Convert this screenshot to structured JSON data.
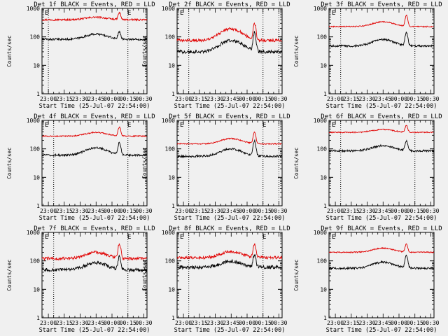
{
  "figure": {
    "start_label": "Start Time (25-Jul-07 22:54:00)",
    "ylabel": "Counts/sec",
    "marker_label": "E",
    "colors": {
      "events": "#000000",
      "lld": "#e00000",
      "axes": "#000000",
      "background": "#f0f0f0"
    }
  },
  "chart_data": [
    {
      "type": "line",
      "title": "Det 1f BLACK = Events, RED = LLD",
      "xlabel": "Start Time (25-Jul-07 22:54:00)",
      "ylabel": "Counts/sec",
      "yscale": "log",
      "ylim": [
        1,
        1000
      ],
      "yticks": [
        "1",
        "10",
        "100",
        "1000"
      ],
      "xlim": [
        "22:54",
        "00:33"
      ],
      "xticks": [
        "23:00",
        "23:15",
        "23:30",
        "23:45",
        "00:00",
        "00:15",
        "00:30"
      ],
      "marker_lines": [
        "23:00",
        "00:15"
      ],
      "markers": [
        "E",
        "E"
      ],
      "series": [
        {
          "name": "LLD",
          "color": "#e00000",
          "base": 400,
          "hump": 490,
          "peak": 700,
          "noise": 0.03
        },
        {
          "name": "Events",
          "color": "#000000",
          "base": 82,
          "hump": 125,
          "peak": 150,
          "noise": 0.035
        }
      ]
    },
    {
      "type": "line",
      "title": "Det 2f BLACK = Events, RED = LLD",
      "xlabel": "Start Time (25-Jul-07 22:54:00)",
      "ylabel": "Counts/sec",
      "yscale": "log",
      "ylim": [
        1,
        1000
      ],
      "yticks": [
        "1",
        "10",
        "100",
        "1000"
      ],
      "xlim": [
        "22:54",
        "00:33"
      ],
      "xticks": [
        "23:00",
        "23:15",
        "23:30",
        "23:45",
        "00:00",
        "00:15",
        "00:30"
      ],
      "marker_lines": [
        "23:05",
        "00:15",
        "00:30"
      ],
      "markers": [
        "E"
      ],
      "series": [
        {
          "name": "LLD",
          "color": "#e00000",
          "base": 75,
          "hump": 190,
          "peak": 300,
          "noise": 0.05
        },
        {
          "name": "Events",
          "color": "#000000",
          "base": 30,
          "hump": 75,
          "peak": 140,
          "noise": 0.06
        }
      ]
    },
    {
      "type": "line",
      "title": "Det 3f BLACK = Events, RED = LLD",
      "xlabel": "Start Time (25-Jul-07 22:54:00)",
      "ylabel": "Counts/sec",
      "yscale": "log",
      "ylim": [
        1,
        1000
      ],
      "yticks": [
        "1",
        "10",
        "100",
        "1000"
      ],
      "xlim": [
        "22:54",
        "00:33"
      ],
      "xticks": [
        "23:00",
        "23:15",
        "23:30",
        "23:45",
        "00:00",
        "00:15",
        "00:30"
      ],
      "marker_lines": [
        "23:05",
        "00:15"
      ],
      "markers": [
        "E"
      ],
      "series": [
        {
          "name": "LLD",
          "color": "#e00000",
          "base": 230,
          "hump": 340,
          "peak": 560,
          "noise": 0.02
        },
        {
          "name": "Events",
          "color": "#000000",
          "base": 48,
          "hump": 80,
          "peak": 140,
          "noise": 0.035
        }
      ]
    },
    {
      "type": "line",
      "title": "Det 4f BLACK = Events, RED = LLD",
      "xlabel": "Start Time (25-Jul-07 22:54:00)",
      "ylabel": "Counts/sec",
      "yscale": "log",
      "ylim": [
        1,
        1000
      ],
      "yticks": [
        "1",
        "10",
        "100",
        "1000"
      ],
      "xlim": [
        "22:54",
        "00:33"
      ],
      "xticks": [
        "23:00",
        "23:15",
        "23:30",
        "23:45",
        "00:00",
        "00:15",
        "00:30"
      ],
      "marker_lines": [
        "23:05",
        "00:15"
      ],
      "markers": [
        "E",
        "E"
      ],
      "series": [
        {
          "name": "LLD",
          "color": "#e00000",
          "base": 280,
          "hump": 380,
          "peak": 580,
          "noise": 0.02
        },
        {
          "name": "Events",
          "color": "#000000",
          "base": 60,
          "hump": 110,
          "peak": 170,
          "noise": 0.035
        }
      ]
    },
    {
      "type": "line",
      "title": "Det 5f BLACK = Events, RED = LLD",
      "xlabel": "Start Time (25-Jul-07 22:54:00)",
      "ylabel": "Counts/sec",
      "yscale": "log",
      "ylim": [
        1,
        1000
      ],
      "yticks": [
        "1",
        "10",
        "100",
        "1000"
      ],
      "xlim": [
        "22:54",
        "00:33"
      ],
      "xticks": [
        "23:00",
        "23:15",
        "23:30",
        "23:45",
        "00:00",
        "00:15",
        "00:30"
      ],
      "marker_lines": [
        "23:05",
        "00:15",
        "00:30"
      ],
      "markers": [
        "E",
        "E"
      ],
      "series": [
        {
          "name": "LLD",
          "color": "#e00000",
          "base": 150,
          "hump": 230,
          "peak": 380,
          "noise": 0.02
        },
        {
          "name": "Events",
          "color": "#000000",
          "base": 55,
          "hump": 100,
          "peak": 190,
          "noise": 0.035
        }
      ]
    },
    {
      "type": "line",
      "title": "Det 6f BLACK = Events, RED = LLD",
      "xlabel": "Start Time (25-Jul-07 22:54:00)",
      "ylabel": "Counts/sec",
      "yscale": "log",
      "ylim": [
        1,
        1000
      ],
      "yticks": [
        "1",
        "10",
        "100",
        "1000"
      ],
      "xlim": [
        "22:54",
        "00:33"
      ],
      "xticks": [
        "23:00",
        "23:15",
        "23:30",
        "23:45",
        "00:00",
        "00:15",
        "00:30"
      ],
      "marker_lines": [
        "23:05",
        "00:15"
      ],
      "markers": [
        "E"
      ],
      "series": [
        {
          "name": "LLD",
          "color": "#e00000",
          "base": 380,
          "hump": 480,
          "peak": 660,
          "noise": 0.02
        },
        {
          "name": "Events",
          "color": "#000000",
          "base": 85,
          "hump": 130,
          "peak": 190,
          "noise": 0.035
        }
      ]
    },
    {
      "type": "line",
      "title": "Det 7f BLACK = Events, RED = LLD",
      "xlabel": "Start Time (25-Jul-07 22:54:00)",
      "ylabel": "Counts/sec",
      "yscale": "log",
      "ylim": [
        1,
        1000
      ],
      "yticks": [
        "1",
        "10",
        "100",
        "1000"
      ],
      "xlim": [
        "22:54",
        "00:33"
      ],
      "xticks": [
        "23:00",
        "23:15",
        "23:30",
        "23:45",
        "00:00",
        "00:15",
        "00:30"
      ],
      "marker_lines": [
        "23:05",
        "00:15"
      ],
      "markers": [
        "E",
        "E"
      ],
      "series": [
        {
          "name": "LLD",
          "color": "#e00000",
          "base": 120,
          "hump": 200,
          "peak": 400,
          "noise": 0.05
        },
        {
          "name": "Events",
          "color": "#000000",
          "base": 48,
          "hump": 85,
          "peak": 140,
          "noise": 0.06
        }
      ]
    },
    {
      "type": "line",
      "title": "Det 8f BLACK = Events, RED = LLD",
      "xlabel": "Start Time (25-Jul-07 22:54:00)",
      "ylabel": "Counts/sec",
      "yscale": "log",
      "ylim": [
        1,
        1000
      ],
      "yticks": [
        "1",
        "10",
        "100",
        "1000"
      ],
      "xlim": [
        "22:54",
        "00:33"
      ],
      "xticks": [
        "23:00",
        "23:15",
        "23:30",
        "23:45",
        "00:00",
        "00:15",
        "00:30"
      ],
      "marker_lines": [
        "23:05",
        "00:15"
      ],
      "markers": [
        "E",
        "E"
      ],
      "series": [
        {
          "name": "LLD",
          "color": "#e00000",
          "base": 130,
          "hump": 210,
          "peak": 380,
          "noise": 0.05
        },
        {
          "name": "Events",
          "color": "#000000",
          "base": 60,
          "hump": 95,
          "peak": 160,
          "noise": 0.06
        }
      ]
    },
    {
      "type": "line",
      "title": "Det 9f BLACK = Events, RED = LLD",
      "xlabel": "Start Time (25-Jul-07 22:54:00)",
      "ylabel": "Counts/sec",
      "yscale": "log",
      "ylim": [
        1,
        1000
      ],
      "yticks": [
        "1",
        "10",
        "100",
        "1000"
      ],
      "xlim": [
        "22:54",
        "00:33"
      ],
      "xticks": [
        "23:00",
        "23:15",
        "23:30",
        "23:45",
        "00:00",
        "00:15",
        "00:30"
      ],
      "marker_lines": [],
      "markers": [
        "E"
      ],
      "series": [
        {
          "name": "LLD",
          "color": "#e00000",
          "base": 200,
          "hump": 280,
          "peak": 380,
          "noise": 0.02
        },
        {
          "name": "Events",
          "color": "#000000",
          "base": 55,
          "hump": 90,
          "peak": 160,
          "noise": 0.035
        }
      ]
    }
  ]
}
